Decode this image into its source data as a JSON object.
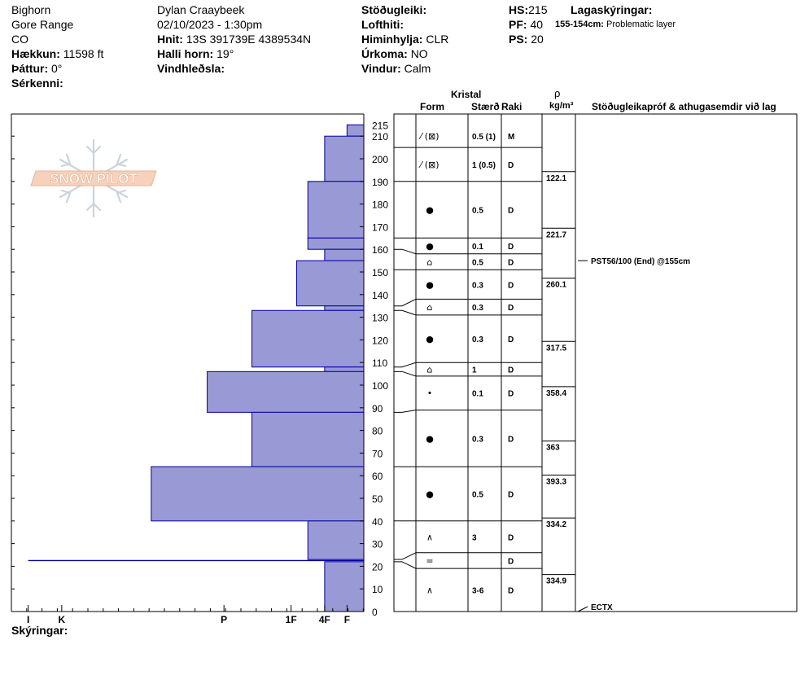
{
  "header": {
    "location": {
      "range": "Bighorn",
      "subrange": "Gore Range",
      "state": "CO",
      "elevation_label": "Hækkun:",
      "elevation_value": "11598 ft",
      "aspect_label": "Þáttur:",
      "aspect_value": "0°",
      "features_label": "Sérkenni:"
    },
    "observer": {
      "name": "Dylan Craaybeek",
      "datetime": "02/10/2023 - 1:30pm",
      "coords_label": "Hnit:",
      "coords_value": "13S 391739E 4389534N",
      "slope_label": "Halli horn:",
      "slope_value": "19°",
      "wind_loading_label": "Vindhleðsla:"
    },
    "conditions": {
      "stability_label": "Stöðugleiki:",
      "air_temp_label": "Lofthiti:",
      "sky_label": "Himinhylja:",
      "sky_value": "CLR",
      "precip_label": "Úrkoma:",
      "precip_value": "NO",
      "wind_label": "Vindur:",
      "wind_value": "Calm"
    },
    "depths": {
      "hs_label": "HS:",
      "hs_value": "215",
      "pf_label": "PF:",
      "pf_value": "40",
      "ps_label": "PS:",
      "ps_value": "20"
    },
    "layer_notes": {
      "label": "Lagaskýringar:",
      "depth": "155-154cm:",
      "text": "Problematic layer"
    }
  },
  "footer": {
    "legend_label": "Skýringar:"
  },
  "table_headers": {
    "crystal": "Kristal",
    "form": "Form",
    "size": "Stærð",
    "moisture": "Raki",
    "rho": "ρ",
    "rho_unit": "kg/m³",
    "tests": "Stöðugleikapróf & athugasemdir við lag"
  },
  "colors": {
    "hardness_fill": "#9999d6",
    "hardness_stroke": "#0000a0"
  },
  "chart_data": {
    "type": "bar",
    "orientation": "horizontal",
    "y_axis": {
      "range": [
        0,
        215
      ],
      "ticks": [
        0,
        10,
        20,
        30,
        40,
        50,
        60,
        70,
        80,
        90,
        100,
        110,
        120,
        130,
        140,
        150,
        160,
        170,
        180,
        190,
        200,
        210
      ],
      "extra_tick_label": "215"
    },
    "x_axis": {
      "tick_labels": [
        {
          "label": "I",
          "hardness": 0.3
        },
        {
          "label": "K",
          "hardness": 0.9
        },
        {
          "label": "P",
          "hardness": 3.8
        },
        {
          "label": "1F",
          "hardness": 5.0
        },
        {
          "label": "4F",
          "hardness": 5.6
        },
        {
          "label": "F",
          "hardness": 6.0
        }
      ],
      "range": [
        0,
        6.3
      ]
    },
    "layers": [
      {
        "bottom": 210,
        "top": 215,
        "hardness": 6.0
      },
      {
        "bottom": 190,
        "top": 210,
        "hardness": 5.6
      },
      {
        "bottom": 165,
        "top": 190,
        "hardness": 5.3
      },
      {
        "bottom": 160,
        "top": 165,
        "hardness": 5.3
      },
      {
        "bottom": 155,
        "top": 160,
        "hardness": 5.6
      },
      {
        "bottom": 135,
        "top": 155,
        "hardness": 5.1
      },
      {
        "bottom": 133,
        "top": 135,
        "hardness": 5.6
      },
      {
        "bottom": 108,
        "top": 133,
        "hardness": 4.3
      },
      {
        "bottom": 106,
        "top": 108,
        "hardness": 5.6
      },
      {
        "bottom": 88,
        "top": 106,
        "hardness": 3.5
      },
      {
        "bottom": 64,
        "top": 88,
        "hardness": 4.3
      },
      {
        "bottom": 40,
        "top": 64,
        "hardness": 2.5
      },
      {
        "bottom": 23,
        "top": 40,
        "hardness": 5.3
      },
      {
        "bottom": 22,
        "top": 23,
        "hardness": 0.3
      },
      {
        "bottom": 0,
        "top": 22,
        "hardness": 5.6
      }
    ],
    "crystal_rows": [
      {
        "bottom": 205,
        "top": 215,
        "form": "⁄ (⊠)",
        "size": "0.5 (1)",
        "moisture": "M"
      },
      {
        "bottom": 190,
        "top": 205,
        "form": "⁄ (⊠)",
        "size": "1 (0.5)",
        "moisture": "D"
      },
      {
        "bottom": 165,
        "top": 190,
        "form": "●",
        "size": "0.5",
        "moisture": "D"
      },
      {
        "bottom": 158,
        "top": 165,
        "form": "●",
        "size": "0.1",
        "moisture": "D"
      },
      {
        "bottom": 151,
        "top": 158,
        "form": "⌂",
        "size": "0.5",
        "moisture": "D"
      },
      {
        "bottom": 138,
        "top": 151,
        "form": "●",
        "size": "0.3",
        "moisture": "D"
      },
      {
        "bottom": 131,
        "top": 138,
        "form": "⌂",
        "size": "0.3",
        "moisture": "D"
      },
      {
        "bottom": 110,
        "top": 131,
        "form": "●",
        "size": "0.3",
        "moisture": "D"
      },
      {
        "bottom": 104,
        "top": 110,
        "form": "⌂",
        "size": "1",
        "moisture": "D"
      },
      {
        "bottom": 89,
        "top": 104,
        "form": "•",
        "size": "0.1",
        "moisture": "D"
      },
      {
        "bottom": 64,
        "top": 89,
        "form": "●",
        "size": "0.3",
        "moisture": "D"
      },
      {
        "bottom": 40,
        "top": 64,
        "form": "●",
        "size": "0.5",
        "moisture": "D"
      },
      {
        "bottom": 26,
        "top": 40,
        "form": "∧",
        "size": "3",
        "moisture": "D"
      },
      {
        "bottom": 19,
        "top": 26,
        "form": "=",
        "size": "",
        "moisture": "D"
      },
      {
        "bottom": 0,
        "top": 19,
        "form": "∧",
        "size": "3-6",
        "moisture": "D"
      }
    ],
    "density": [
      {
        "depth": 190,
        "value": "122.1"
      },
      {
        "depth": 165,
        "value": "221.7"
      },
      {
        "depth": 143,
        "value": "260.1"
      },
      {
        "depth": 115,
        "value": "317.5"
      },
      {
        "depth": 95,
        "value": "358.4"
      },
      {
        "depth": 71,
        "value": "363"
      },
      {
        "depth": 56,
        "value": "393.3"
      },
      {
        "depth": 37,
        "value": "334.2"
      },
      {
        "depth": 12,
        "value": "334.9"
      }
    ],
    "tests": [
      {
        "depth": 155,
        "text": "PST56/100 (End) @155cm"
      },
      {
        "depth": 0,
        "text": "ECTX"
      }
    ]
  }
}
